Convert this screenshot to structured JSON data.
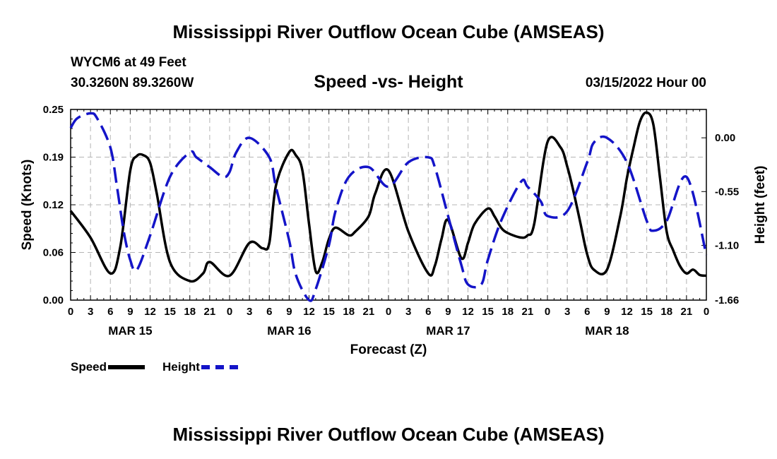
{
  "title": "Mississippi River Outflow Ocean Cube (AMSEAS)",
  "station": "WYCM6 at 49 Feet",
  "coords": "30.3260N  89.3260W",
  "subtitle": "Speed -vs- Height",
  "datetime": "03/15/2022 Hour 00",
  "legend": {
    "speed": "Speed",
    "height": "Height"
  },
  "colors": {
    "speed": "#000000",
    "height": "#1414c8",
    "grid": "#b4b4b4"
  },
  "chart_data": {
    "type": "line",
    "title": "Speed -vs- Height",
    "xlabel": "Forecast (Z)",
    "ylabel_left": "Speed (Knots)",
    "ylabel_right": "Height (feet)",
    "x_range": [
      0,
      96
    ],
    "left_ylim": [
      0,
      0.25
    ],
    "right_ylim": [
      -1.66,
      0.29
    ],
    "left_ticks": [
      "0.00",
      "0.06",
      "0.12",
      "0.19",
      "0.25"
    ],
    "left_tick_values": [
      0,
      0.0625,
      0.125,
      0.1875,
      0.25
    ],
    "right_ticks": [
      "0.00",
      "-0.55",
      "-1.10",
      "-1.66"
    ],
    "right_tick_values": [
      0,
      -0.55,
      -1.1,
      -1.66
    ],
    "x_tick_labels": [
      "0",
      "3",
      "6",
      "9",
      "12",
      "15",
      "18",
      "21",
      "0",
      "3",
      "6",
      "9",
      "12",
      "15",
      "18",
      "21",
      "0",
      "3",
      "6",
      "9",
      "12",
      "15",
      "18",
      "21",
      "0",
      "3",
      "6",
      "9",
      "12",
      "15",
      "18",
      "21",
      "0"
    ],
    "day_labels": [
      {
        "label": "MAR 15",
        "x": 9
      },
      {
        "label": "MAR 16",
        "x": 33
      },
      {
        "label": "MAR 17",
        "x": 57
      },
      {
        "label": "MAR 18",
        "x": 81
      }
    ],
    "series": [
      {
        "name": "Speed",
        "axis": "left",
        "x": [
          0,
          3,
          6,
          7.5,
          9,
          10,
          11,
          12,
          13,
          15,
          18,
          20,
          21,
          24,
          27,
          29,
          30,
          31,
          33,
          34,
          35,
          36,
          37,
          38,
          39,
          40,
          42,
          43,
          45,
          46,
          48,
          51,
          54,
          55,
          56,
          57,
          59,
          60,
          61,
          63,
          64,
          65,
          66,
          68,
          69,
          70,
          72,
          74,
          75,
          76,
          77,
          78,
          79,
          81,
          83,
          84,
          85,
          86,
          87,
          88,
          89,
          90,
          91,
          92,
          93,
          94,
          95,
          96
        ],
        "values": [
          0.117,
          0.082,
          0.035,
          0.07,
          0.17,
          0.189,
          0.19,
          0.18,
          0.14,
          0.05,
          0.025,
          0.035,
          0.05,
          0.032,
          0.075,
          0.068,
          0.075,
          0.15,
          0.194,
          0.19,
          0.17,
          0.1,
          0.038,
          0.05,
          0.08,
          0.095,
          0.085,
          0.09,
          0.11,
          0.14,
          0.17,
          0.09,
          0.035,
          0.045,
          0.08,
          0.105,
          0.055,
          0.075,
          0.1,
          0.12,
          0.11,
          0.095,
          0.088,
          0.082,
          0.085,
          0.1,
          0.207,
          0.2,
          0.175,
          0.14,
          0.1,
          0.06,
          0.04,
          0.04,
          0.11,
          0.16,
          0.2,
          0.235,
          0.246,
          0.23,
          0.16,
          0.09,
          0.065,
          0.045,
          0.035,
          0.04,
          0.033,
          0.032
        ]
      },
      {
        "name": "Height",
        "axis": "right",
        "x": [
          0,
          1,
          3,
          4,
          6,
          7,
          8,
          9,
          10,
          12,
          15,
          18,
          19,
          21,
          23,
          24,
          25,
          27,
          30,
          31,
          33,
          34,
          36,
          37,
          39,
          40,
          42,
          45,
          48,
          51,
          54,
          55,
          57,
          59,
          60,
          62,
          63,
          65,
          68,
          69,
          71,
          72,
          75,
          78,
          79,
          81,
          84,
          87,
          88,
          90,
          93,
          96
        ],
        "values": [
          0.1,
          0.2,
          0.25,
          0.2,
          -0.1,
          -0.5,
          -0.95,
          -1.25,
          -1.35,
          -1.0,
          -0.4,
          -0.15,
          -0.2,
          -0.3,
          -0.4,
          -0.35,
          -0.15,
          0.0,
          -0.2,
          -0.5,
          -1.05,
          -1.4,
          -1.66,
          -1.55,
          -1.1,
          -0.75,
          -0.4,
          -0.3,
          -0.5,
          -0.25,
          -0.2,
          -0.3,
          -0.8,
          -1.3,
          -1.5,
          -1.5,
          -1.25,
          -0.85,
          -0.45,
          -0.5,
          -0.65,
          -0.8,
          -0.75,
          -0.25,
          -0.05,
          0.0,
          -0.25,
          -0.85,
          -0.95,
          -0.85,
          -0.4,
          -1.2
        ]
      }
    ]
  }
}
